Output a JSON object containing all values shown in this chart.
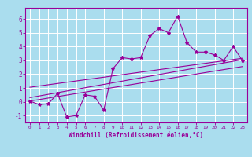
{
  "xlabel": "Windchill (Refroidissement éolien,°C)",
  "ylabel": "",
  "bg_color": "#aaddee",
  "grid_color": "#ffffff",
  "line_color": "#990099",
  "x_data": [
    0,
    1,
    2,
    3,
    4,
    5,
    6,
    7,
    8,
    9,
    10,
    11,
    12,
    13,
    14,
    15,
    16,
    17,
    18,
    19,
    20,
    21,
    22,
    23
  ],
  "y_scatter": [
    0.05,
    -0.2,
    -0.15,
    0.6,
    -1.1,
    -1.0,
    0.5,
    0.4,
    -0.6,
    2.4,
    3.2,
    3.1,
    3.2,
    4.8,
    5.3,
    5.0,
    6.2,
    4.3,
    3.6,
    3.6,
    3.4,
    3.0,
    4.0,
    3.0
  ],
  "xlim": [
    -0.5,
    23.5
  ],
  "ylim": [
    -1.5,
    6.8
  ],
  "yticks": [
    -1,
    0,
    1,
    2,
    3,
    4,
    5,
    6
  ],
  "xticks": [
    0,
    1,
    2,
    3,
    4,
    5,
    6,
    7,
    8,
    9,
    10,
    11,
    12,
    13,
    14,
    15,
    16,
    17,
    18,
    19,
    20,
    21,
    22,
    23
  ],
  "reg_lines": [
    {
      "x0": 0,
      "y0": 0.05,
      "x1": 23,
      "y1": 2.55
    },
    {
      "x0": 0,
      "y0": 0.3,
      "x1": 23,
      "y1": 3.05
    },
    {
      "x0": 0,
      "y0": 1.05,
      "x1": 23,
      "y1": 3.15
    }
  ]
}
